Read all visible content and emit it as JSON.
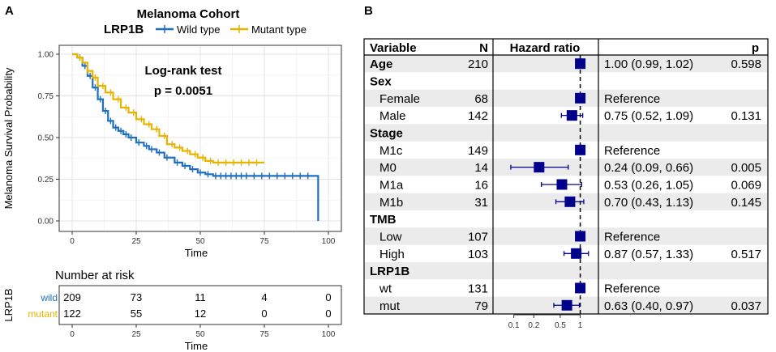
{
  "panel_a": {
    "label": "A",
    "title": "Melanoma Cohort",
    "legend_title": "LRP1B",
    "legend_items": [
      {
        "name": "Wild type",
        "color": "#1f6fbd"
      },
      {
        "name": "Mutant type",
        "color": "#e8b400"
      }
    ],
    "annotation_line1": "Log-rank test",
    "annotation_line2": "p = 0.0051",
    "risk_title": "Number at risk",
    "risk_axis_label": "LRP1B",
    "risk_groups": [
      {
        "name": "wild",
        "color": "#1f6fbd",
        "values": [
          "209",
          "73",
          "11",
          "4",
          "0"
        ]
      },
      {
        "name": "mutant",
        "color": "#e8b400",
        "values": [
          "122",
          "55",
          "12",
          "0",
          "0"
        ]
      }
    ]
  },
  "panel_b": {
    "label": "B",
    "headers": {
      "variable": "Variable",
      "n": "N",
      "hr": "Hazard ratio",
      "p": "p"
    },
    "axis_ticks": [
      "0.1",
      "0.2",
      "0.5",
      "1"
    ],
    "rows": [
      {
        "variable": "Age",
        "n": "210",
        "ci": "1.00 (0.99, 1.02)",
        "p": "0.598",
        "group": true,
        "shade": true,
        "hr": 1.0,
        "lo": 0.99,
        "hi": 1.02
      },
      {
        "variable": "Sex",
        "n": "",
        "ci": "",
        "p": "",
        "group": true,
        "shade": false
      },
      {
        "variable": "Female",
        "n": "68",
        "ci": "Reference",
        "p": "",
        "group": false,
        "shade": true,
        "hr": 1.0
      },
      {
        "variable": "Male",
        "n": "142",
        "ci": "0.75 (0.52, 1.09)",
        "p": "0.131",
        "group": false,
        "shade": false,
        "hr": 0.75,
        "lo": 0.52,
        "hi": 1.09
      },
      {
        "variable": "Stage",
        "n": "",
        "ci": "",
        "p": "",
        "group": true,
        "shade": true
      },
      {
        "variable": "M1c",
        "n": "149",
        "ci": "Reference",
        "p": "",
        "group": false,
        "shade": false,
        "hr": 1.0
      },
      {
        "variable": "M0",
        "n": "14",
        "ci": "0.24 (0.09, 0.66)",
        "p": "0.005",
        "group": false,
        "shade": true,
        "hr": 0.24,
        "lo": 0.09,
        "hi": 0.66
      },
      {
        "variable": "M1a",
        "n": "16",
        "ci": "0.53 (0.26, 1.05)",
        "p": "0.069",
        "group": false,
        "shade": false,
        "hr": 0.53,
        "lo": 0.26,
        "hi": 1.05
      },
      {
        "variable": "M1b",
        "n": "31",
        "ci": "0.70 (0.43, 1.13)",
        "p": "0.145",
        "group": false,
        "shade": true,
        "hr": 0.7,
        "lo": 0.43,
        "hi": 1.13
      },
      {
        "variable": "TMB",
        "n": "",
        "ci": "",
        "p": "",
        "group": true,
        "shade": false
      },
      {
        "variable": "Low",
        "n": "107",
        "ci": "Reference",
        "p": "",
        "group": false,
        "shade": true,
        "hr": 1.0
      },
      {
        "variable": "High",
        "n": "103",
        "ci": "0.87 (0.57, 1.33)",
        "p": "0.517",
        "group": false,
        "shade": false,
        "hr": 0.87,
        "lo": 0.57,
        "hi": 1.33
      },
      {
        "variable": "LRP1B",
        "n": "",
        "ci": "",
        "p": "",
        "group": true,
        "shade": true
      },
      {
        "variable": "wt",
        "n": "131",
        "ci": "Reference",
        "p": "",
        "group": false,
        "shade": false,
        "hr": 1.0
      },
      {
        "variable": "mut",
        "n": "79",
        "ci": "0.63 (0.40, 0.97)",
        "p": "0.037",
        "group": false,
        "shade": true,
        "hr": 0.63,
        "lo": 0.4,
        "hi": 0.97
      }
    ]
  },
  "chart_data": [
    {
      "type": "line",
      "subtype": "kaplan-meier",
      "title": "Melanoma Cohort",
      "xlabel": "Time",
      "ylabel": "Melanoma Survival Probability",
      "xlim": [
        0,
        100
      ],
      "ylim": [
        0,
        1
      ],
      "xticks": [
        "0",
        "25",
        "50",
        "75",
        "100"
      ],
      "yticks": [
        "0.00",
        "0.25",
        "0.50",
        "0.75",
        "1.00"
      ],
      "series": [
        {
          "name": "Wild type",
          "color": "#1f6fbd",
          "points": [
            [
              0,
              1.0
            ],
            [
              2,
              0.98
            ],
            [
              4,
              0.93
            ],
            [
              6,
              0.87
            ],
            [
              8,
              0.8
            ],
            [
              10,
              0.73
            ],
            [
              12,
              0.66
            ],
            [
              14,
              0.6
            ],
            [
              16,
              0.56
            ],
            [
              18,
              0.54
            ],
            [
              20,
              0.52
            ],
            [
              22,
              0.5
            ],
            [
              25,
              0.47
            ],
            [
              28,
              0.45
            ],
            [
              30,
              0.43
            ],
            [
              33,
              0.41
            ],
            [
              36,
              0.38
            ],
            [
              40,
              0.35
            ],
            [
              43,
              0.33
            ],
            [
              46,
              0.31
            ],
            [
              49,
              0.29
            ],
            [
              52,
              0.28
            ],
            [
              55,
              0.27
            ],
            [
              60,
              0.27
            ],
            [
              70,
              0.27
            ],
            [
              80,
              0.27
            ],
            [
              90,
              0.27
            ],
            [
              96,
              0.27
            ],
            [
              96,
              0.0
            ]
          ],
          "censor_times": [
            3,
            5,
            7,
            9,
            11,
            13,
            15,
            17,
            19,
            21,
            23,
            26,
            29,
            31,
            34,
            37,
            41,
            44,
            47,
            50,
            53,
            56,
            58,
            60,
            62,
            64,
            66,
            68,
            71,
            74,
            77,
            80,
            83,
            86,
            89,
            92
          ]
        },
        {
          "name": "Mutant type",
          "color": "#e8b400",
          "points": [
            [
              0,
              1.0
            ],
            [
              2,
              0.98
            ],
            [
              4,
              0.95
            ],
            [
              6,
              0.9
            ],
            [
              8,
              0.86
            ],
            [
              10,
              0.81
            ],
            [
              13,
              0.77
            ],
            [
              16,
              0.73
            ],
            [
              19,
              0.68
            ],
            [
              22,
              0.65
            ],
            [
              25,
              0.61
            ],
            [
              28,
              0.58
            ],
            [
              31,
              0.55
            ],
            [
              34,
              0.51
            ],
            [
              37,
              0.46
            ],
            [
              40,
              0.44
            ],
            [
              43,
              0.42
            ],
            [
              46,
              0.4
            ],
            [
              49,
              0.38
            ],
            [
              52,
              0.36
            ],
            [
              55,
              0.35
            ],
            [
              60,
              0.35
            ],
            [
              65,
              0.35
            ],
            [
              70,
              0.35
            ],
            [
              75,
              0.35
            ]
          ],
          "censor_times": [
            3,
            6,
            9,
            12,
            15,
            18,
            21,
            24,
            27,
            30,
            33,
            36,
            39,
            42,
            45,
            48,
            51,
            54,
            57,
            60,
            63,
            66,
            69,
            72
          ]
        }
      ],
      "annotations": [
        "Log-rank test",
        "p = 0.0051"
      ]
    },
    {
      "type": "table",
      "subtype": "number-at-risk",
      "title": "Number at risk",
      "xlabel": "Time",
      "x": [
        0,
        25,
        50,
        75,
        100
      ],
      "series": [
        {
          "name": "wild",
          "values": [
            209,
            73,
            11,
            4,
            0
          ]
        },
        {
          "name": "mutant",
          "values": [
            122,
            55,
            12,
            0,
            0
          ]
        }
      ]
    },
    {
      "type": "scatter",
      "subtype": "forest-plot",
      "xlabel": "Hazard ratio",
      "xscale": "log",
      "xlim": [
        0.07,
        1.5
      ],
      "xticks": [
        0.1,
        0.2,
        0.5,
        1
      ],
      "categories": [
        "Age",
        "Male",
        "M0",
        "M1a",
        "M1b",
        "High",
        "mut"
      ],
      "values": [
        1.0,
        0.75,
        0.24,
        0.53,
        0.7,
        0.87,
        0.63
      ],
      "ci_low": [
        0.99,
        0.52,
        0.09,
        0.26,
        0.43,
        0.57,
        0.4
      ],
      "ci_high": [
        1.02,
        1.09,
        0.66,
        1.05,
        1.13,
        1.33,
        0.97
      ],
      "references": [
        "Female",
        "M1c",
        "Low",
        "wt"
      ]
    }
  ]
}
